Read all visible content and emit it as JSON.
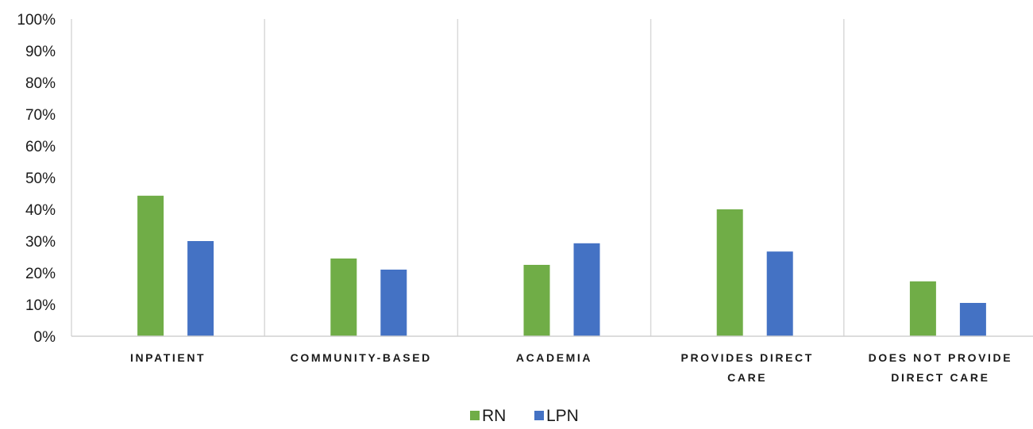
{
  "chart_data": {
    "type": "bar",
    "categories": [
      "INPATIENT",
      "COMMUNITY-BASED",
      "ACADEMIA",
      "PROVIDES DIRECT CARE",
      "DOES NOT PROVIDE DIRECT CARE"
    ],
    "category_lines": [
      [
        "INPATIENT"
      ],
      [
        "COMMUNITY-BASED"
      ],
      [
        "ACADEMIA"
      ],
      [
        "PROVIDES DIRECT",
        "CARE"
      ],
      [
        "DOES NOT PROVIDE",
        "DIRECT CARE"
      ]
    ],
    "series": [
      {
        "name": "RN",
        "color": "#70ad47",
        "values": [
          44.3,
          24.5,
          22.5,
          40.0,
          17.3
        ]
      },
      {
        "name": "LPN",
        "color": "#4472c4",
        "values": [
          30.0,
          21.0,
          29.3,
          26.7,
          10.5
        ]
      }
    ],
    "yticks": [
      "0%",
      "10%",
      "20%",
      "30%",
      "40%",
      "50%",
      "60%",
      "70%",
      "80%",
      "90%",
      "100%"
    ],
    "ylim": [
      0,
      100
    ],
    "legend_position": "bottom",
    "grid": "vertical separators between categories"
  }
}
